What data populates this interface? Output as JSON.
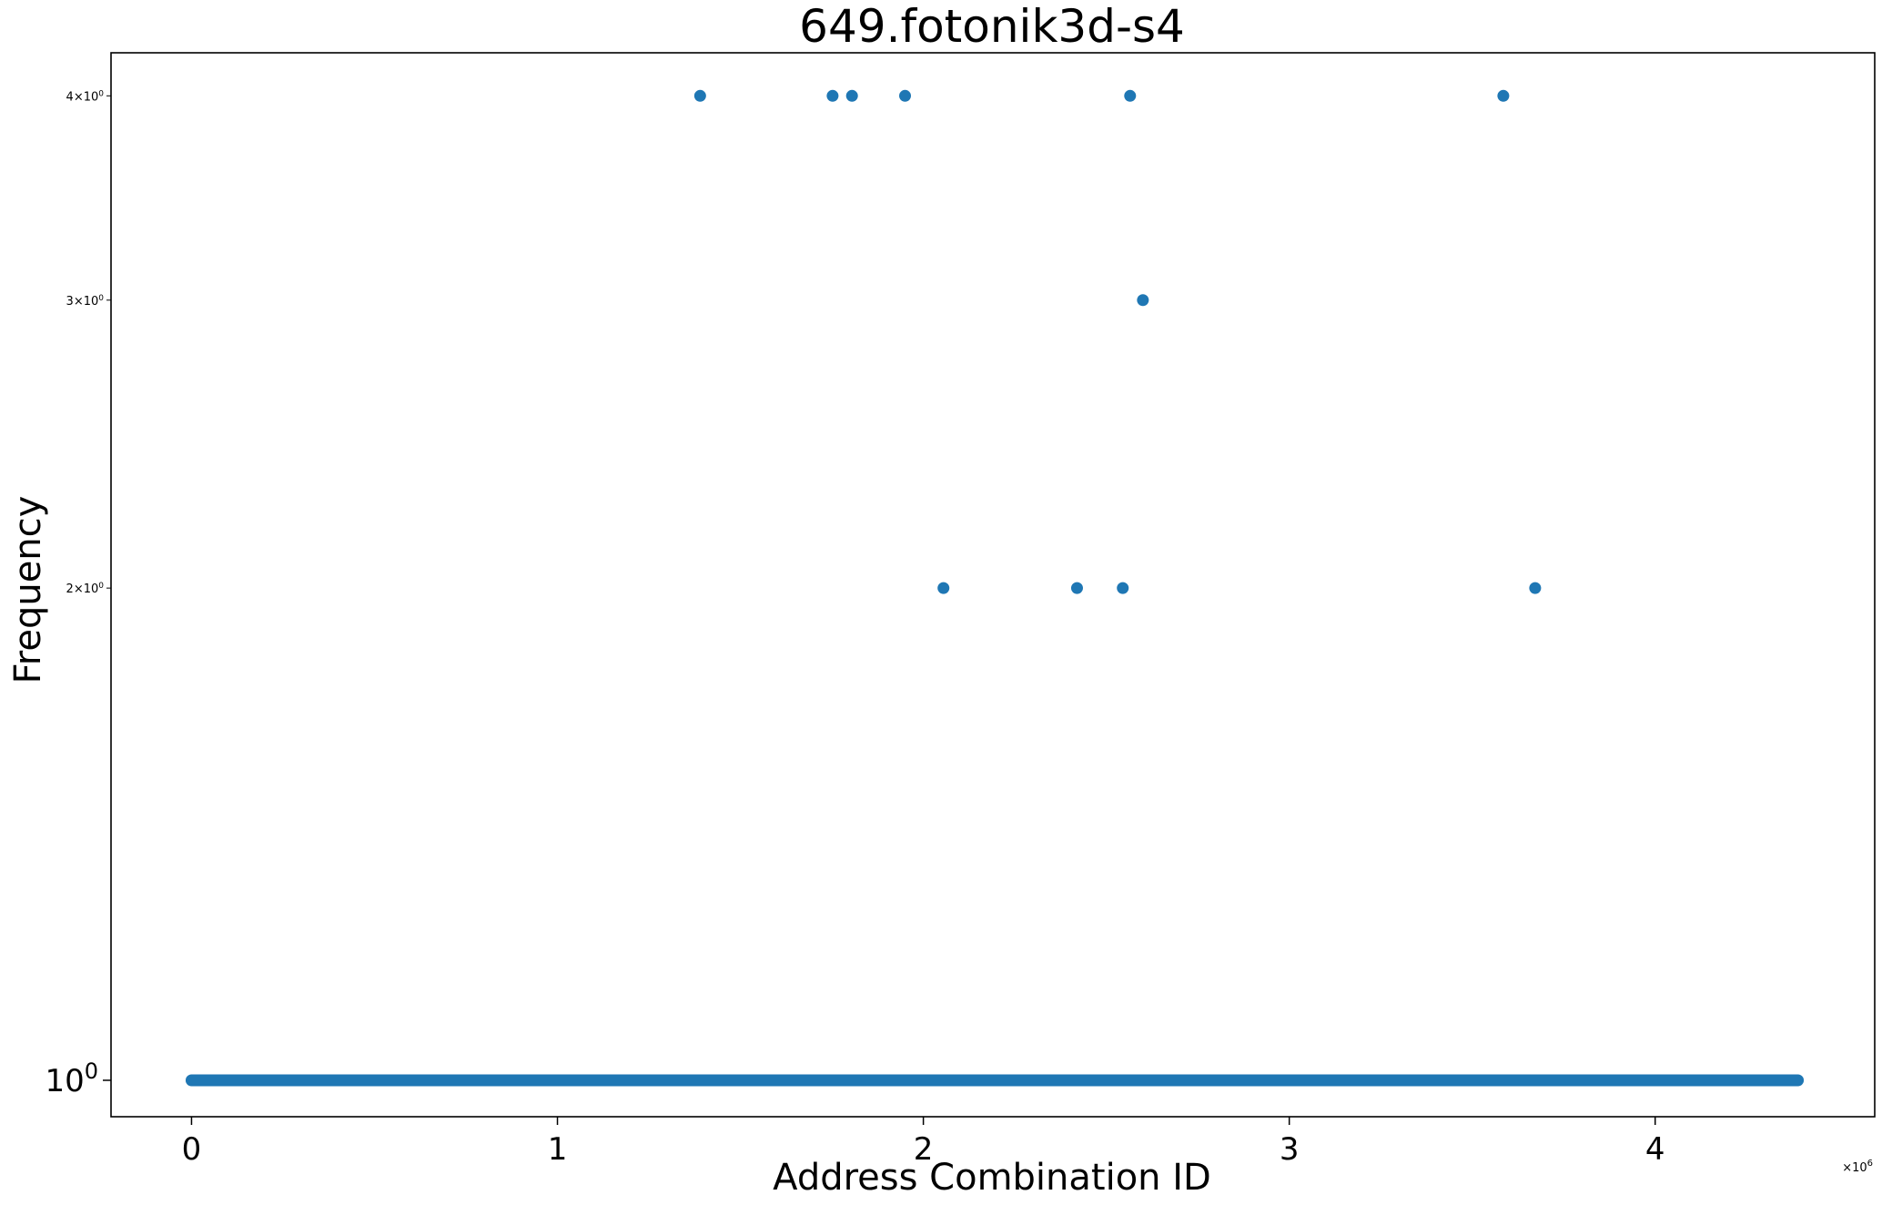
{
  "chart_data": {
    "type": "scatter",
    "title": "649.fotonik3d-s4",
    "xlabel": "Address Combination ID",
    "ylabel": "Frequency",
    "x_scale_label": "×10",
    "x_scale_exponent": "6",
    "x_multiplier": 1000000,
    "xlim": [
      -220000,
      4600000
    ],
    "ylim": [
      0.95,
      4.25
    ],
    "yscale": "log",
    "grid": false,
    "legend": "none",
    "marker_color": "#1f77b4",
    "x_ticks": [
      {
        "value": 0,
        "label": "0"
      },
      {
        "value": 1000000,
        "label": "1"
      },
      {
        "value": 2000000,
        "label": "2"
      },
      {
        "value": 3000000,
        "label": "3"
      },
      {
        "value": 4000000,
        "label": "4"
      }
    ],
    "y_ticks": [
      {
        "value": 1,
        "base": "10",
        "exp": "0",
        "major": true
      },
      {
        "value": 2,
        "base": "2×10",
        "exp": "0",
        "major": false
      },
      {
        "value": 3,
        "base": "3×10",
        "exp": "0",
        "major": false
      },
      {
        "value": 4,
        "base": "4×10",
        "exp": "0",
        "major": false
      }
    ],
    "baseline_series": {
      "y": 1,
      "x_start": 0,
      "x_end": 4390000,
      "description_count_approx": 4390000
    },
    "points": [
      {
        "x": 1390000,
        "y": 4
      },
      {
        "x": 1752000,
        "y": 4
      },
      {
        "x": 1805000,
        "y": 4
      },
      {
        "x": 1950000,
        "y": 4
      },
      {
        "x": 2565000,
        "y": 4
      },
      {
        "x": 3585000,
        "y": 4
      },
      {
        "x": 2600000,
        "y": 3
      },
      {
        "x": 2055000,
        "y": 2
      },
      {
        "x": 2420000,
        "y": 2
      },
      {
        "x": 2545000,
        "y": 2
      },
      {
        "x": 3672000,
        "y": 2
      }
    ]
  }
}
